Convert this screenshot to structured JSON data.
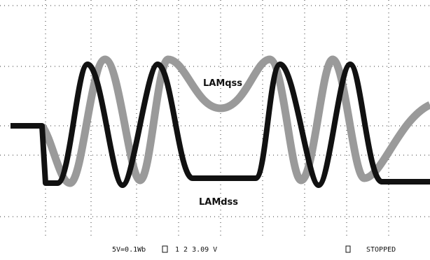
{
  "traces": {
    "upper_label": "LAMqss",
    "lower_label": "LAMdss"
  },
  "status_bar": {
    "scale": "5V=0.1Wb",
    "trigger": "1 2 3.09 V",
    "state": "STOPPED"
  }
}
